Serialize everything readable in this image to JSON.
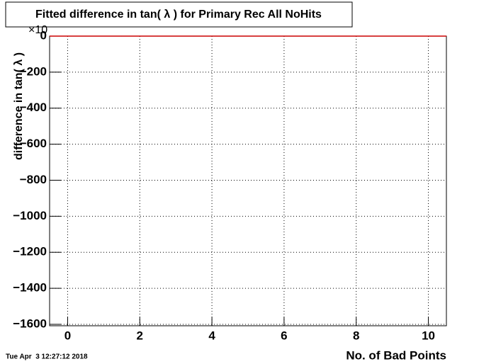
{
  "chart_data": {
    "type": "histogram",
    "title": "Fitted difference in tan( λ ) for Primary Rec All NoHits",
    "x_label": "No. of Bad Points",
    "y_label": "difference in tan( λ )",
    "y_multiplier": "×10",
    "timestamp": "Tue Apr  3 12:27:12 2018",
    "bins": [
      -0.5,
      0.5,
      1.5,
      2.5,
      3.5,
      4.5,
      5.5,
      6.5,
      7.5,
      8.5,
      9.5,
      10.5
    ],
    "values": [
      0,
      0,
      0,
      0,
      0,
      0,
      0,
      0,
      0,
      0,
      0
    ],
    "color": "#cc0000",
    "xlim": [
      -0.5,
      10.5
    ],
    "xticks": [
      0,
      2,
      4,
      6,
      8,
      10
    ],
    "ylim": [
      -1608,
      0
    ],
    "yticks": [
      0,
      {
        "value": -200,
        "label": "−200"
      },
      {
        "value": -400,
        "label": "−400"
      },
      {
        "value": -600,
        "label": "−600"
      },
      {
        "value": -800,
        "label": "−800"
      },
      {
        "value": -1000,
        "label": "−1000"
      },
      {
        "value": -1200,
        "label": "−1200"
      },
      {
        "value": -1400,
        "label": "−1400"
      },
      {
        "value": -1600,
        "label": "−1600"
      }
    ],
    "grid": true
  }
}
